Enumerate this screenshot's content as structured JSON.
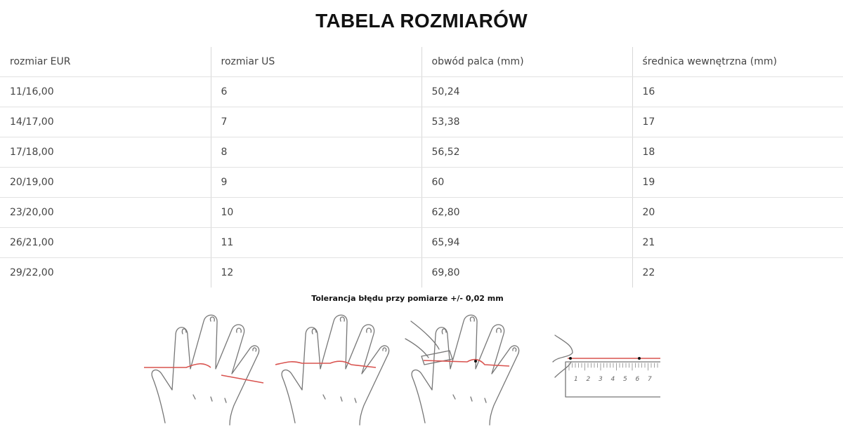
{
  "title": "TABELA ROZMIARÓW",
  "table": {
    "headers": [
      "rozmiar EUR",
      "rozmiar US",
      "obwód palca (mm)",
      "średnica wewnętrzna (mm)"
    ],
    "rows": [
      [
        "11/16,00",
        "6",
        "50,24",
        "16"
      ],
      [
        "14/17,00",
        "7",
        "53,38",
        "17"
      ],
      [
        "17/18,00",
        "8",
        "56,52",
        "18"
      ],
      [
        "20/19,00",
        "9",
        "60",
        "19"
      ],
      [
        "23/20,00",
        "10",
        "62,80",
        "20"
      ],
      [
        "26/21,00",
        "11",
        "65,94",
        "21"
      ],
      [
        "29/22,00",
        "12",
        "69,80",
        "22"
      ]
    ]
  },
  "tolerance_note": "Tolerancja błędu przy pomiarze +/- 0,02 mm",
  "illustration": {
    "steps": [
      "wrap-string-around-finger",
      "string-around-finger",
      "mark-string-with-pen",
      "measure-string-on-ruler"
    ],
    "ruler_labels": [
      "1",
      "2",
      "3",
      "4",
      "5",
      "6",
      "7"
    ],
    "string_color": "#d9534f"
  }
}
